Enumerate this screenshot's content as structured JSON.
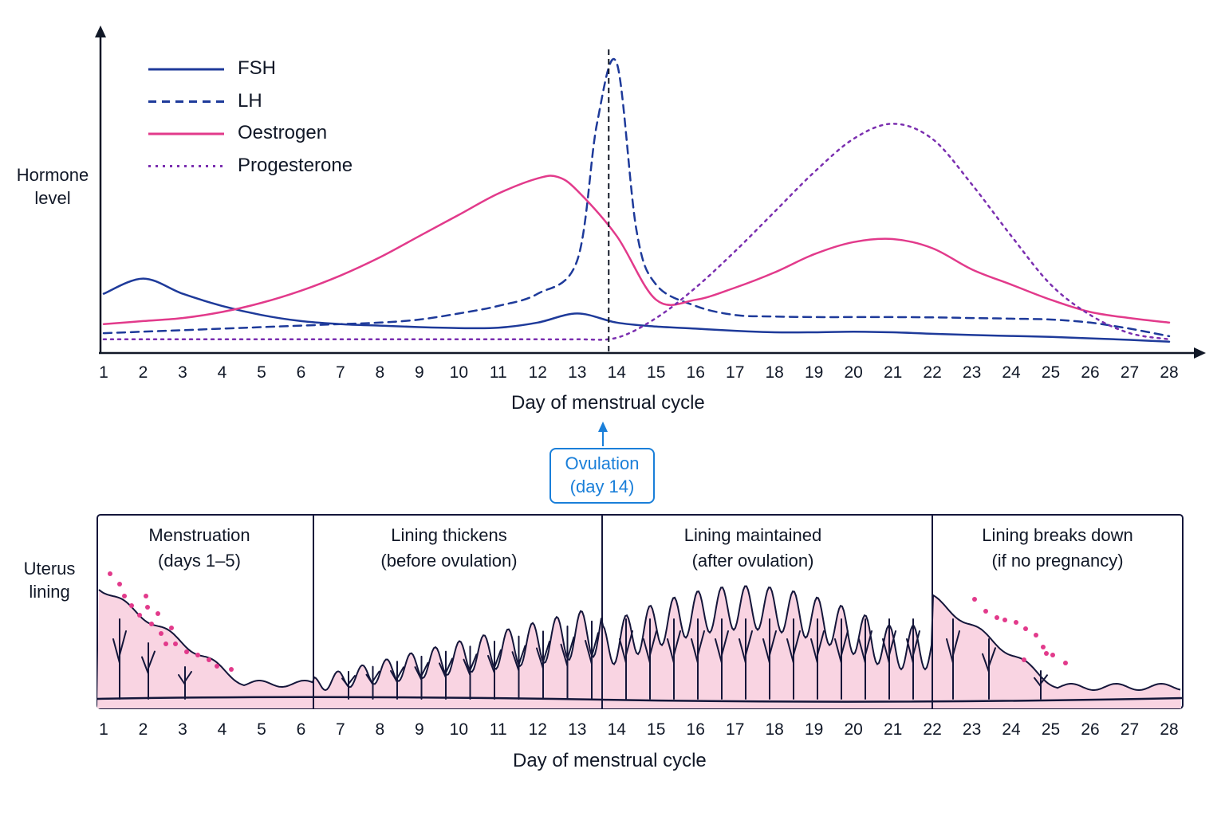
{
  "chart_data": {
    "type": "line",
    "ylabel": "Hormone level",
    "xlabel": "Day of menstrual cycle",
    "x_ticks": [
      "1",
      "2",
      "3",
      "4",
      "5",
      "6",
      "7",
      "8",
      "9",
      "10",
      "11",
      "12",
      "13",
      "14",
      "15",
      "16",
      "17",
      "18",
      "19",
      "20",
      "21",
      "22",
      "23",
      "24",
      "25",
      "26",
      "27",
      "28"
    ],
    "xlim": [
      1,
      28
    ],
    "ylim": [
      0,
      100
    ],
    "grid": false,
    "legend_position": "top-left",
    "series": [
      {
        "name": "FSH",
        "style": "solid",
        "color": "#1e3a9a",
        "x": [
          1,
          2,
          3,
          4,
          5,
          6,
          7,
          8,
          9,
          10,
          11,
          12,
          13,
          14,
          15,
          16,
          17,
          18,
          19,
          20,
          21,
          22,
          23,
          24,
          25,
          26,
          27,
          28
        ],
        "y": [
          19,
          24,
          19,
          15,
          12,
          10,
          9,
          8.5,
          8,
          7.7,
          7.8,
          9.5,
          12.5,
          9.5,
          8.2,
          7.5,
          6.8,
          6.3,
          6.3,
          6.5,
          6.3,
          5.8,
          5.4,
          5.1,
          4.8,
          4.3,
          3.8,
          3.2
        ]
      },
      {
        "name": "LH",
        "style": "dashed",
        "color": "#1e3a9a",
        "x": [
          1,
          2,
          3,
          4,
          5,
          6,
          7,
          8,
          9,
          10,
          11,
          12,
          13,
          13.5,
          14,
          14.5,
          15,
          16,
          17,
          18,
          19,
          20,
          21,
          22,
          23,
          24,
          25,
          26,
          27,
          28
        ],
        "y": [
          6,
          6.5,
          7,
          7.5,
          8,
          8.5,
          9,
          9.5,
          10.5,
          12.5,
          15,
          19,
          30,
          75,
          95,
          40,
          22,
          15,
          12,
          11.5,
          11.3,
          11.3,
          11.3,
          11.2,
          11,
          10.8,
          10.5,
          9.5,
          7.5,
          5
        ]
      },
      {
        "name": "Oestrogen",
        "style": "solid",
        "color": "#e23a8b",
        "x": [
          1,
          2,
          3,
          4,
          5,
          6,
          7,
          8,
          9,
          10,
          11,
          12,
          12.5,
          13,
          14,
          15,
          16,
          17,
          18,
          19,
          20,
          21,
          22,
          23,
          24,
          25,
          26,
          27,
          28
        ],
        "y": [
          9,
          10,
          11,
          13,
          16,
          20,
          25,
          31,
          38,
          45,
          52,
          57,
          57.5,
          53,
          38,
          17,
          17,
          21,
          26,
          32,
          36,
          37,
          34,
          27,
          22,
          17,
          13,
          11,
          9.5
        ]
      },
      {
        "name": "Progesterone",
        "style": "dotted",
        "color": "#7b2fb0",
        "x": [
          1,
          2,
          3,
          4,
          5,
          6,
          7,
          8,
          9,
          10,
          11,
          12,
          13,
          14,
          15,
          16,
          17,
          18,
          19,
          20,
          21,
          22,
          23,
          24,
          25,
          26,
          27,
          28
        ],
        "y": [
          4,
          4,
          4,
          4,
          4,
          4,
          4,
          4,
          4,
          4,
          4,
          4,
          4,
          4.5,
          11,
          21,
          33,
          46,
          59,
          70,
          75,
          70,
          55,
          38,
          22,
          12,
          6,
          4
        ]
      }
    ],
    "reference_line": {
      "x": 14,
      "style": "dashed"
    }
  },
  "hormone_axis": {
    "ylabel_line1": "Hormone",
    "ylabel_line2": "level",
    "xlabel": "Day of menstrual cycle"
  },
  "ovulation": {
    "line1": "Ovulation",
    "line2": "(day 14)",
    "color": "#1a7fd9"
  },
  "uterus": {
    "ylabel_line1": "Uterus",
    "ylabel_line2": "lining",
    "xlabel": "Day of menstrual cycle",
    "phases": [
      {
        "title": "Menstruation",
        "subtitle": "(days 1–5)"
      },
      {
        "title": "Lining thickens",
        "subtitle": "(before ovulation)"
      },
      {
        "title": "Lining maintained",
        "subtitle": "(after ovulation)"
      },
      {
        "title": "Lining breaks down",
        "subtitle": "(if no pregnancy)"
      }
    ],
    "lining_color": "#f9d4e2",
    "blood_color": "#e23a8b",
    "outline_color": "#14163a"
  }
}
